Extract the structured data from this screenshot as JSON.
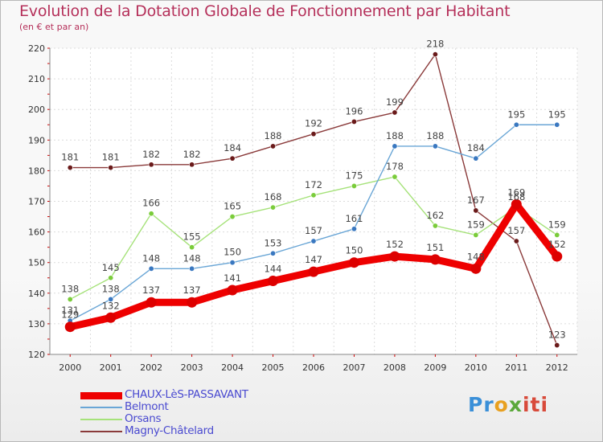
{
  "chart_data": {
    "type": "line",
    "title": "Evolution de la Dotation Globale de Fonctionnement par Habitant",
    "subtitle": "(en € et par an)",
    "xlabel": "",
    "ylabel": "",
    "ylim": [
      120,
      220
    ],
    "yticks": [
      120,
      130,
      140,
      150,
      160,
      170,
      180,
      190,
      200,
      210,
      220
    ],
    "categories": [
      "2000",
      "2001",
      "2002",
      "2003",
      "2004",
      "2005",
      "2006",
      "2007",
      "2008",
      "2009",
      "2010",
      "2011",
      "2012"
    ],
    "grid": true,
    "legend_position": "bottom-left",
    "series": [
      {
        "name": "CHAUX-LèS-PASSAVANT",
        "color": "#ee0000",
        "marker": "#dd0000",
        "emphasis": true,
        "values": [
          129,
          132,
          137,
          137,
          141,
          144,
          147,
          150,
          152,
          151,
          148,
          169,
          152
        ]
      },
      {
        "name": "Belmont",
        "color": "#6aa6d6",
        "marker": "#3a78c0",
        "emphasis": false,
        "values": [
          131,
          138,
          148,
          148,
          150,
          153,
          157,
          161,
          188,
          188,
          184,
          195,
          195
        ]
      },
      {
        "name": "Orsans",
        "color": "#a6e27a",
        "marker": "#7acc3a",
        "emphasis": false,
        "values": [
          138,
          145,
          166,
          155,
          165,
          168,
          172,
          175,
          178,
          162,
          159,
          168,
          159
        ]
      },
      {
        "name": "Magny-Châtelard",
        "color": "#8a3a3a",
        "marker": "#6a1a1a",
        "emphasis": false,
        "values": [
          181,
          181,
          182,
          182,
          184,
          188,
          192,
          196,
          199,
          218,
          167,
          157,
          123
        ]
      }
    ]
  },
  "brand": {
    "letters": [
      "Pr",
      "o",
      "x",
      "iti"
    ],
    "colors": [
      "#3a8fd8",
      "#e8a020",
      "#5aa83a",
      "#d84a3a"
    ]
  }
}
